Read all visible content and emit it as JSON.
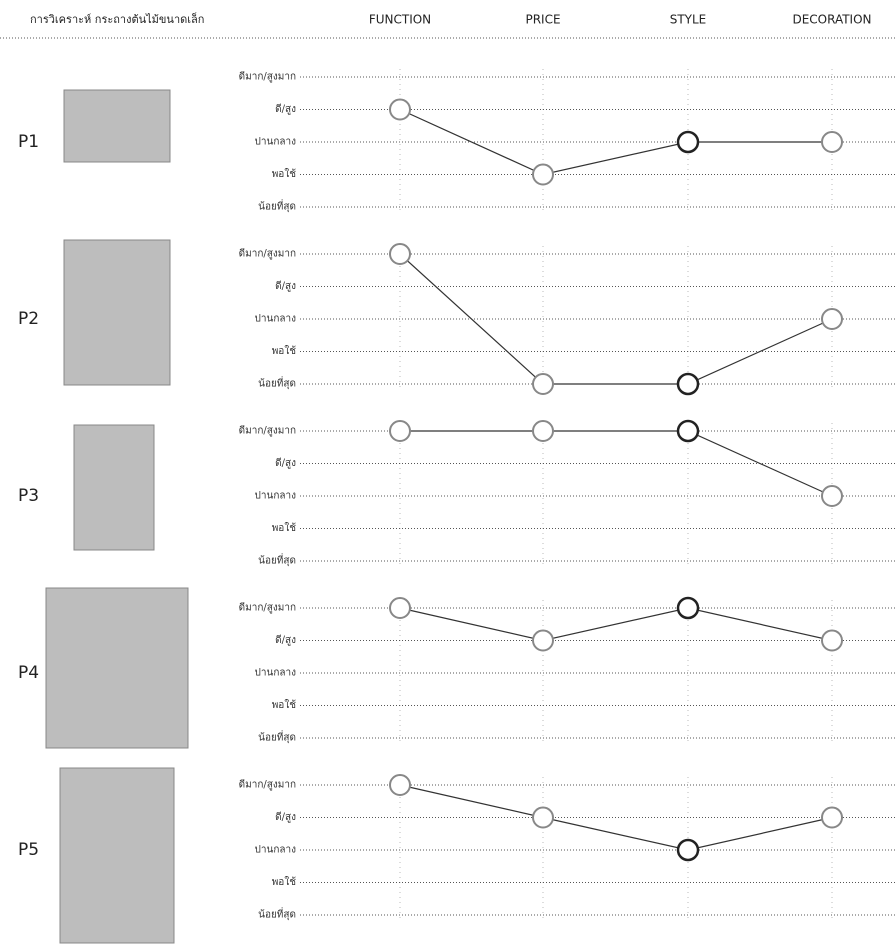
{
  "title": "การวิเคราะห์ กระถางต้นไม้ขนาดเล็ก",
  "categories": [
    "FUNCTION",
    "PRICE",
    "STYLE",
    "DECORATION"
  ],
  "chart_data": [
    {
      "type": "line",
      "label": "P1",
      "values": [
        4,
        2,
        3,
        3
      ],
      "color": "#333333",
      "ylim": [
        1,
        5
      ],
      "yticks": [
        {
          "value": 1,
          "label": "น้อยที่สุด"
        },
        {
          "value": 2,
          "label": "พอใช้"
        },
        {
          "value": 3,
          "label": "ปานกลาง"
        },
        {
          "value": 4,
          "label": "ดี/สูง"
        },
        {
          "value": 5,
          "label": "ดีมาก/สูงมาก"
        }
      ],
      "grid": true
    },
    {
      "type": "line",
      "label": "P2",
      "values": [
        5,
        1,
        1,
        3
      ],
      "color": "#333333",
      "ylim": [
        1,
        5
      ],
      "yticks": [
        {
          "value": 1,
          "label": "น้อยที่สุด"
        },
        {
          "value": 2,
          "label": "พอใช้"
        },
        {
          "value": 3,
          "label": "ปานกลาง"
        },
        {
          "value": 4,
          "label": "ดี/สูง"
        },
        {
          "value": 5,
          "label": "ดีมาก/สูงมาก"
        }
      ],
      "grid": true
    },
    {
      "type": "line",
      "label": "P3",
      "values": [
        5,
        5,
        5,
        3
      ],
      "color": "#333333",
      "ylim": [
        1,
        5
      ],
      "yticks": [
        {
          "value": 1,
          "label": "น้อยที่สุด"
        },
        {
          "value": 2,
          "label": "พอใช้"
        },
        {
          "value": 3,
          "label": "ปานกลาง"
        },
        {
          "value": 4,
          "label": "ดี/สูง"
        },
        {
          "value": 5,
          "label": "ดีมาก/สูงมาก"
        }
      ],
      "grid": true
    },
    {
      "type": "line",
      "label": "P4",
      "values": [
        5,
        4,
        5,
        4
      ],
      "color": "#333333",
      "ylim": [
        1,
        5
      ],
      "yticks": [
        {
          "value": 1,
          "label": "น้อยที่สุด"
        },
        {
          "value": 2,
          "label": "พอใช้"
        },
        {
          "value": 3,
          "label": "ปานกลาง"
        },
        {
          "value": 4,
          "label": "ดี/สูง"
        },
        {
          "value": 5,
          "label": "ดีมาก/สูงมาก"
        }
      ],
      "grid": true
    },
    {
      "type": "line",
      "label": "P5",
      "values": [
        5,
        4,
        3,
        4
      ],
      "color": "#333333",
      "ylim": [
        1,
        5
      ],
      "yticks": [
        {
          "value": 1,
          "label": "น้อยที่สุด"
        },
        {
          "value": 2,
          "label": "พอใช้"
        },
        {
          "value": 3,
          "label": "ปานกลาง"
        },
        {
          "value": 4,
          "label": "ดี/สูง"
        },
        {
          "value": 5,
          "label": "ดีมาก/สูงมาก"
        }
      ],
      "grid": true
    }
  ]
}
